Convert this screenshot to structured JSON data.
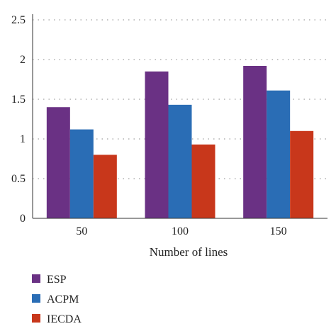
{
  "chart_data": {
    "type": "bar",
    "categories": [
      "50",
      "100",
      "150"
    ],
    "series": [
      {
        "name": "ESP",
        "values": [
          1.4,
          1.85,
          1.92
        ],
        "color": "#6A3184"
      },
      {
        "name": "ACPM",
        "values": [
          1.12,
          1.43,
          1.61
        ],
        "color": "#2A6DB5"
      },
      {
        "name": "IECDA",
        "values": [
          0.8,
          0.93,
          1.1
        ],
        "color": "#C8371B"
      }
    ],
    "y_ticks": [
      "0",
      "0.5",
      "1",
      "1.5",
      "2",
      "2.5"
    ],
    "ylim": [
      0,
      2.5
    ],
    "xlabel": "Number of lines",
    "ylabel": "",
    "title": "",
    "grid": "horizontal dotted",
    "legend_position": "bottom-left"
  }
}
